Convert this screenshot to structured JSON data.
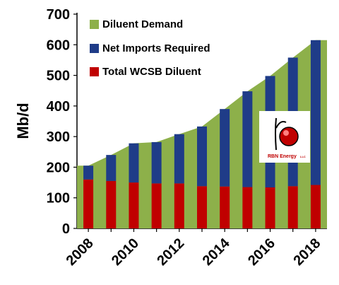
{
  "chart_data": {
    "type": "bar",
    "categories": [
      "2008",
      "2009",
      "2010",
      "2011",
      "2012",
      "2013",
      "2014",
      "2015",
      "2016",
      "2017",
      "2018"
    ],
    "x_tick_labels": [
      "2008",
      "2010",
      "2012",
      "2014",
      "2016",
      "2018"
    ],
    "ylabel": "Mb/d",
    "ylim": [
      0,
      700
    ],
    "y_ticks": [
      "0",
      "100",
      "200",
      "300",
      "400",
      "500",
      "600",
      "700"
    ],
    "series": [
      {
        "name": "Diluent Demand",
        "kind": "area",
        "color": "#8db04a",
        "values": [
          205,
          240,
          278,
          282,
          308,
          333,
          390,
          448,
          498,
          558,
          615
        ]
      },
      {
        "name": "Net Imports Required",
        "kind": "stacked-bar",
        "color": "#1f3c88",
        "values": [
          45,
          85,
          128,
          135,
          161,
          195,
          253,
          313,
          364,
          420,
          473
        ]
      },
      {
        "name": "Total WCSB Diluent",
        "kind": "stacked-bar",
        "color": "#c00000",
        "values": [
          160,
          155,
          150,
          147,
          147,
          138,
          137,
          135,
          134,
          138,
          142
        ]
      }
    ],
    "legend_position": "top-left",
    "grid": false
  },
  "logo": {
    "name": "RBN Energy",
    "text": "RBN Energy",
    "suffix": "LLC"
  }
}
